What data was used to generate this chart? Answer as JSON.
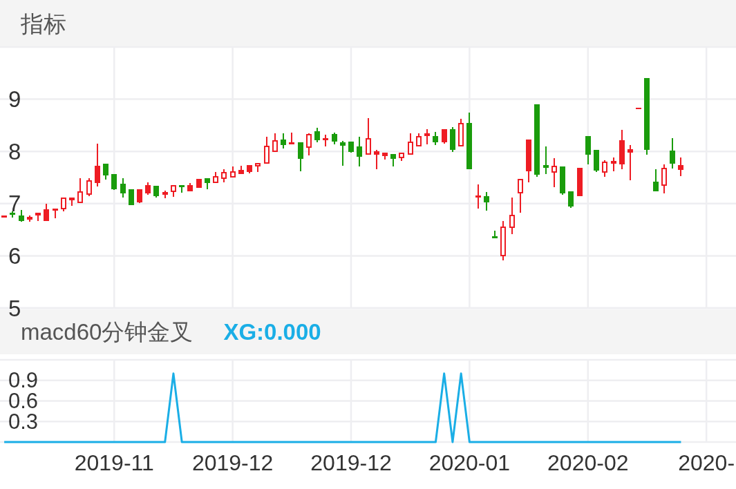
{
  "chart_data": [
    {
      "type": "candlestick",
      "title": "指标",
      "categories": [
        null,
        null,
        null,
        null,
        null,
        null,
        null,
        null,
        null,
        null,
        null,
        null,
        null,
        null,
        null,
        null,
        null,
        null,
        null,
        null,
        null,
        null,
        null,
        null,
        null,
        null,
        null,
        null,
        null,
        null,
        null,
        null,
        null,
        null,
        null,
        null,
        null,
        null,
        null,
        null,
        null,
        null,
        null,
        null,
        null,
        null,
        null,
        null,
        null,
        null,
        null,
        null,
        null,
        null,
        null,
        null,
        null,
        null,
        null,
        null,
        null,
        null,
        null,
        null,
        null,
        null,
        null,
        null,
        null,
        null,
        null,
        null,
        null,
        null,
        null,
        null,
        null,
        null,
        null,
        null,
        null,
        null,
        null,
        null,
        null,
        null,
        null
      ],
      "ohlc": [
        [
          6.77,
          6.77,
          6.73,
          6.73
        ],
        [
          6.82,
          6.85,
          6.73,
          6.78
        ],
        [
          6.77,
          6.88,
          6.65,
          6.67
        ],
        [
          6.74,
          6.77,
          6.66,
          6.69
        ],
        [
          6.77,
          6.82,
          6.67,
          6.82
        ],
        [
          6.89,
          7.0,
          6.67,
          6.67
        ],
        [
          6.9,
          6.9,
          6.72,
          6.86
        ],
        [
          6.89,
          7.11,
          6.85,
          7.11
        ],
        [
          7.07,
          7.12,
          6.96,
          7.11
        ],
        [
          7.01,
          7.49,
          7.01,
          7.24
        ],
        [
          7.17,
          7.49,
          7.14,
          7.45
        ],
        [
          7.72,
          8.15,
          7.33,
          7.39
        ],
        [
          7.77,
          7.77,
          7.46,
          7.54
        ],
        [
          7.56,
          7.56,
          7.26,
          7.28
        ],
        [
          7.38,
          7.49,
          7.12,
          7.2
        ],
        [
          7.28,
          7.28,
          6.97,
          6.97
        ],
        [
          7.28,
          7.28,
          7.01,
          7.02
        ],
        [
          7.35,
          7.41,
          7.17,
          7.2
        ],
        [
          7.34,
          7.34,
          7.12,
          7.14
        ],
        [
          7.22,
          7.25,
          7.1,
          7.17
        ],
        [
          7.22,
          7.36,
          7.13,
          7.36
        ],
        [
          7.36,
          7.36,
          7.21,
          7.31
        ],
        [
          7.35,
          7.4,
          7.23,
          7.23
        ],
        [
          7.47,
          7.47,
          7.3,
          7.3
        ],
        [
          7.49,
          7.49,
          7.28,
          7.4
        ],
        [
          7.4,
          7.61,
          7.39,
          7.52
        ],
        [
          7.47,
          7.66,
          7.41,
          7.61
        ],
        [
          7.5,
          7.71,
          7.5,
          7.62
        ],
        [
          7.64,
          7.73,
          7.56,
          7.56
        ],
        [
          7.74,
          7.74,
          7.58,
          7.6
        ],
        [
          7.71,
          7.78,
          7.61,
          7.78
        ],
        [
          7.77,
          8.28,
          7.77,
          8.11
        ],
        [
          7.99,
          8.34,
          7.99,
          8.22
        ],
        [
          8.23,
          8.35,
          8.06,
          8.12
        ],
        [
          8.17,
          8.36,
          8.13,
          8.13
        ],
        [
          8.18,
          8.18,
          7.62,
          7.86
        ],
        [
          8.07,
          8.35,
          7.92,
          8.33
        ],
        [
          8.38,
          8.45,
          8.17,
          8.21
        ],
        [
          8.21,
          8.32,
          8.09,
          8.25
        ],
        [
          8.33,
          8.36,
          8.14,
          8.19
        ],
        [
          8.17,
          8.2,
          7.72,
          8.11
        ],
        [
          8.19,
          8.19,
          7.97,
          7.99
        ],
        [
          8.1,
          8.28,
          7.71,
          7.9
        ],
        [
          7.93,
          8.64,
          7.93,
          8.25
        ],
        [
          8.0,
          8.03,
          7.66,
          7.93
        ],
        [
          7.97,
          7.98,
          7.84,
          7.91
        ],
        [
          7.95,
          7.95,
          7.71,
          7.86
        ],
        [
          7.87,
          7.97,
          7.82,
          7.97
        ],
        [
          7.93,
          8.35,
          7.93,
          8.19
        ],
        [
          8.1,
          8.35,
          8.09,
          8.3
        ],
        [
          8.34,
          8.43,
          8.13,
          8.29
        ],
        [
          8.29,
          8.37,
          8.12,
          8.17
        ],
        [
          8.43,
          8.43,
          8.15,
          8.18
        ],
        [
          8.43,
          8.47,
          7.99,
          8.03
        ],
        [
          8.09,
          8.63,
          8.09,
          8.54
        ],
        [
          8.54,
          8.75,
          7.66,
          7.66
        ],
        [
          7.15,
          7.37,
          6.9,
          7.11
        ],
        [
          7.14,
          7.22,
          6.87,
          7.03
        ],
        [
          6.38,
          6.48,
          6.33,
          6.33
        ],
        [
          5.99,
          6.67,
          5.91,
          6.56
        ],
        [
          6.53,
          7.11,
          6.42,
          6.79
        ],
        [
          7.2,
          7.47,
          6.82,
          7.47
        ],
        [
          8.23,
          8.23,
          7.41,
          7.62
        ],
        [
          8.9,
          8.9,
          7.51,
          7.55
        ],
        [
          7.74,
          8.1,
          7.56,
          7.68
        ],
        [
          7.59,
          7.87,
          7.31,
          7.72
        ],
        [
          7.71,
          7.71,
          7.17,
          7.2
        ],
        [
          7.23,
          7.23,
          6.92,
          6.95
        ],
        [
          7.68,
          7.68,
          7.14,
          7.14
        ],
        [
          8.29,
          8.29,
          7.75,
          7.94
        ],
        [
          8.03,
          8.03,
          7.61,
          7.63
        ],
        [
          7.59,
          7.83,
          7.51,
          7.81
        ],
        [
          7.77,
          7.89,
          7.62,
          7.82
        ],
        [
          8.21,
          8.41,
          7.66,
          7.75
        ],
        [
          8.04,
          8.12,
          7.45,
          7.98
        ],
        [
          8.82,
          8.82,
          8.82,
          8.82
        ],
        [
          9.41,
          9.41,
          7.93,
          8.03
        ],
        [
          7.42,
          7.66,
          7.23,
          7.23
        ],
        [
          7.34,
          7.75,
          7.19,
          7.68
        ],
        [
          8.02,
          8.26,
          7.67,
          7.76
        ],
        [
          7.74,
          7.88,
          7.52,
          7.65
        ],
        null,
        null,
        null,
        null,
        null,
        null
      ],
      "colors": [
        "#ee1c23",
        "#1a9c0c",
        "#1a9c0c",
        "#ee1c23",
        "#ee1c23",
        "#ee1c23",
        "#ee1c23",
        "#ee1c23",
        "#ee1c23",
        "#ee1c23",
        "#ee1c23",
        "#ee1c23",
        "#1a9c0c",
        "#1a9c0c",
        "#1a9c0c",
        "#1a9c0c",
        "#ee1c23",
        "#ee1c23",
        "#1a9c0c",
        "#ee1c23",
        "#ee1c23",
        "#1a9c0c",
        "#ee1c23",
        "#ee1c23",
        "#1a9c0c",
        "#ee1c23",
        "#ee1c23",
        "#ee1c23",
        "#ee1c23",
        "#ee1c23",
        "#ee1c23",
        "#ee1c23",
        "#ee1c23",
        "#1a9c0c",
        "#ee1c23",
        "#1a9c0c",
        "#ee1c23",
        "#1a9c0c",
        "#ee1c23",
        "#1a9c0c",
        "#1a9c0c",
        "#1a9c0c",
        "#1a9c0c",
        "#ee1c23",
        "#ee1c23",
        "#ee1c23",
        "#1a9c0c",
        "#ee1c23",
        "#ee1c23",
        "#ee1c23",
        "#ee1c23",
        "#1a9c0c",
        "#ee1c23",
        "#1a9c0c",
        "#ee1c23",
        "#1a9c0c",
        "#ee1c23",
        "#1a9c0c",
        "#1a9c0c",
        "#ee1c23",
        "#ee1c23",
        "#ee1c23",
        "#ee1c23",
        "#1a9c0c",
        "#1a9c0c",
        "#ee1c23",
        "#1a9c0c",
        "#1a9c0c",
        "#ee1c23",
        "#1a9c0c",
        "#1a9c0c",
        "#ee1c23",
        "#ee1c23",
        "#ee1c23",
        "#ee1c23",
        "#ee1c23",
        "#1a9c0c",
        "#1a9c0c",
        "#ee1c23",
        "#1a9c0c",
        "#ee1c23",
        null,
        null,
        null,
        null,
        null,
        null
      ],
      "ylim": [
        5,
        10
      ],
      "yticks": [
        5,
        6,
        7,
        8,
        9
      ],
      "grid": true,
      "tick_labels": "y"
    },
    {
      "type": "line",
      "title": "macd60分钟金叉",
      "categories": [
        null,
        null,
        null,
        null,
        null,
        null,
        null,
        null,
        null,
        null,
        null,
        null,
        null,
        "2019-11",
        null,
        null,
        null,
        null,
        null,
        null,
        null,
        null,
        null,
        null,
        null,
        null,
        null,
        "2019-12",
        null,
        null,
        null,
        null,
        null,
        null,
        null,
        null,
        null,
        null,
        null,
        null,
        null,
        "2019-12",
        null,
        null,
        null,
        null,
        null,
        null,
        null,
        null,
        null,
        null,
        null,
        null,
        null,
        "2020-01",
        null,
        null,
        null,
        null,
        null,
        null,
        null,
        null,
        null,
        null,
        null,
        null,
        null,
        "2020-02",
        null,
        null,
        null,
        null,
        null,
        null,
        null,
        null,
        null,
        null,
        null,
        null,
        null,
        "2020-",
        null,
        null,
        null
      ],
      "series": [
        {
          "name": "XG:0.000",
          "color": "#1aaee6",
          "values": [
            0,
            0,
            0,
            0,
            0,
            0,
            0,
            0,
            0,
            0,
            0,
            0,
            0,
            0,
            0,
            0,
            0,
            0,
            0,
            0,
            1,
            0,
            0,
            0,
            0,
            0,
            0,
            0,
            0,
            0,
            0,
            0,
            0,
            0,
            0,
            0,
            0,
            0,
            0,
            0,
            0,
            0,
            0,
            0,
            0,
            0,
            0,
            0,
            0,
            0,
            0,
            0,
            1,
            0,
            1,
            0,
            0,
            0,
            0,
            0,
            0,
            0,
            0,
            0,
            0,
            0,
            0,
            0,
            0,
            0,
            0,
            0,
            0,
            0,
            0,
            0,
            0,
            0,
            0,
            0,
            0,
            null,
            null,
            null,
            null,
            null,
            null
          ]
        }
      ],
      "ylim": [
        0,
        1.2
      ],
      "yticks": [
        0.3,
        0.6,
        0.9
      ],
      "grid": true,
      "legend": "top left"
    }
  ]
}
